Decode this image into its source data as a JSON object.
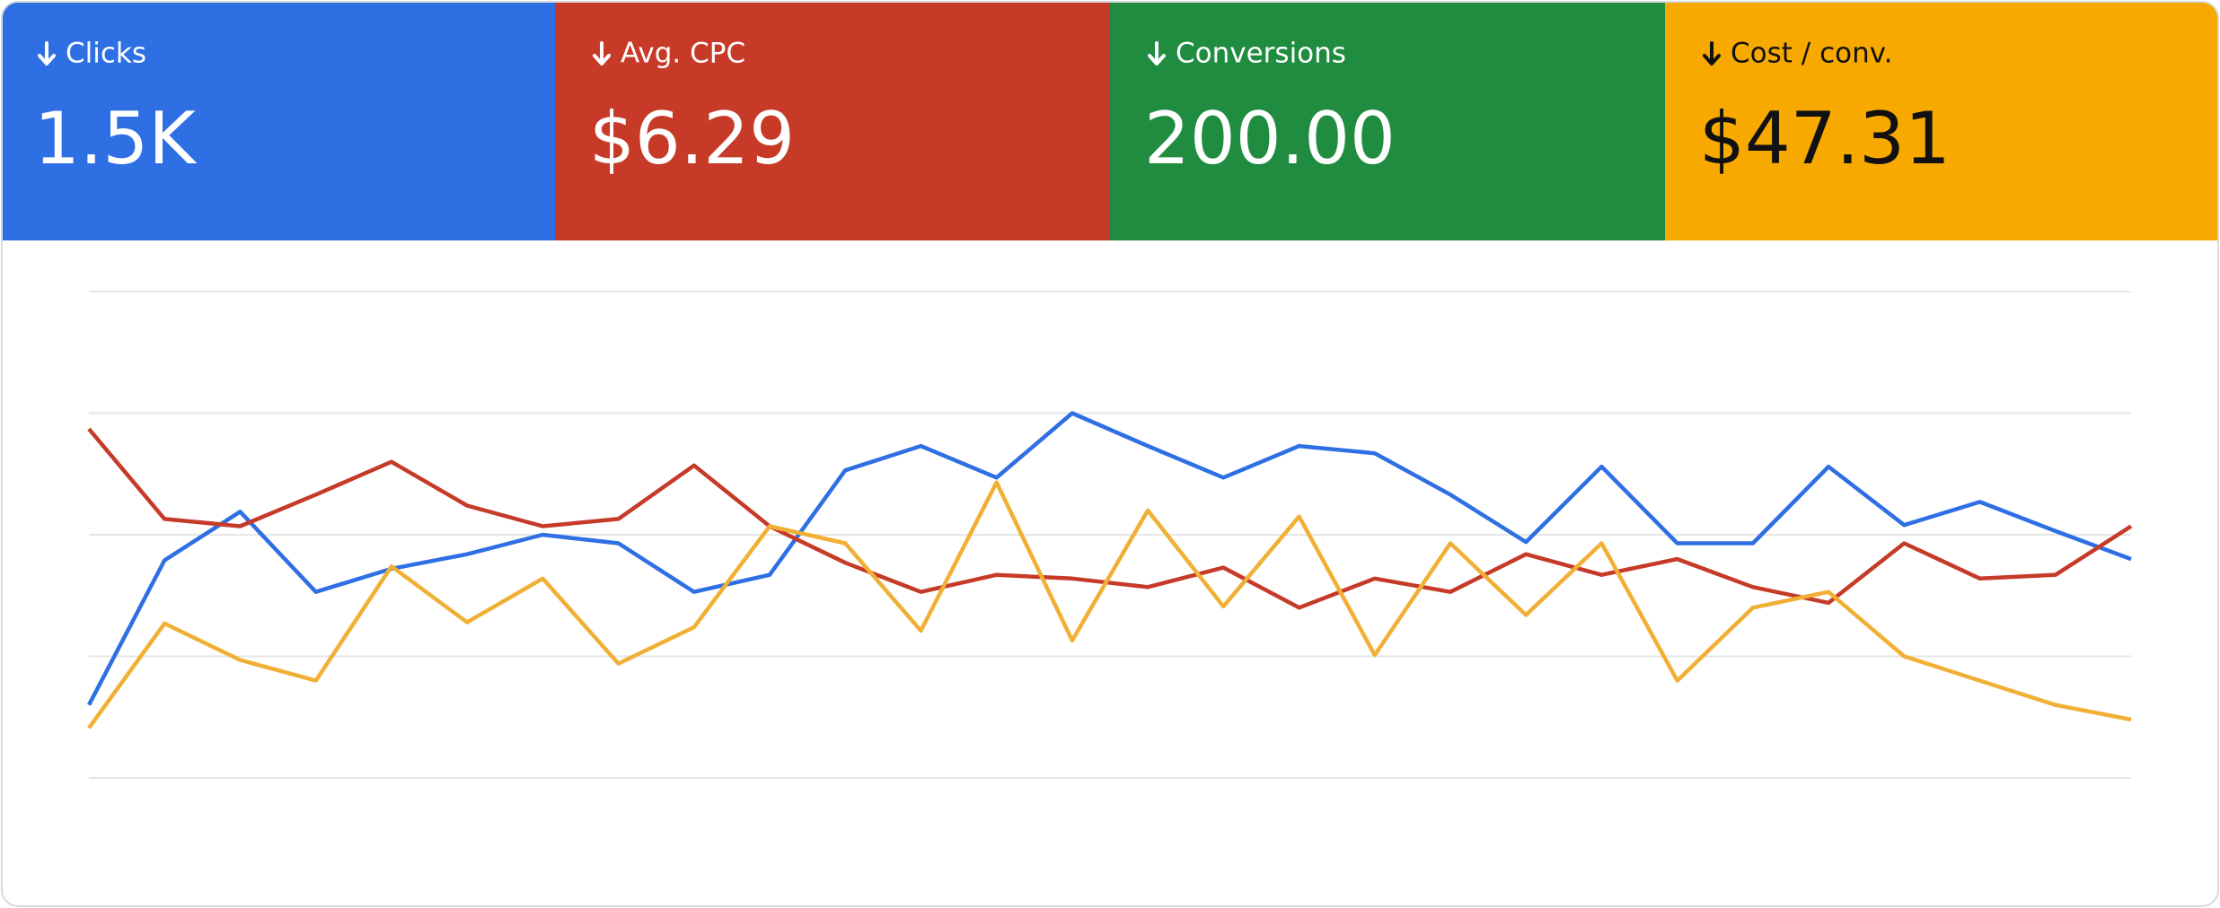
{
  "cards": [
    {
      "label": "Clicks",
      "value": "1.5K",
      "color": "#2f6fe4",
      "text_color": "#ffffff"
    },
    {
      "label": "Avg. CPC",
      "value": "$6.29",
      "color": "#c73a28",
      "text_color": "#ffffff"
    },
    {
      "label": "Conversions",
      "value": "200.00",
      "color": "#208c3f",
      "text_color": "#ffffff"
    },
    {
      "label": "Cost / conv.",
      "value": "$47.31",
      "color": "#f8a900",
      "text_color": "#111111"
    }
  ],
  "chart_data": {
    "type": "line",
    "ylim": [
      0,
      4
    ],
    "grid": true,
    "series": [
      {
        "color": "#2f6fe4",
        "values": [
          0.6,
          1.79,
          2.19,
          1.53,
          1.72,
          1.84,
          2.0,
          1.93,
          1.53,
          1.67,
          2.53,
          2.73,
          2.47,
          3.0,
          2.73,
          2.47,
          2.73,
          2.67,
          2.33,
          1.94,
          2.56,
          1.93,
          1.93,
          2.56,
          2.08,
          2.27,
          2.03,
          1.8
        ]
      },
      {
        "color": "#c63a28",
        "values": [
          2.87,
          2.13,
          2.07,
          2.33,
          2.6,
          2.24,
          2.07,
          2.13,
          2.57,
          2.07,
          1.77,
          1.53,
          1.67,
          1.64,
          1.57,
          1.73,
          1.4,
          1.64,
          1.53,
          1.84,
          1.67,
          1.8,
          1.57,
          1.44,
          1.93,
          1.64,
          1.67,
          2.07
        ]
      },
      {
        "color": "#f1b035",
        "values": [
          0.41,
          1.27,
          0.97,
          0.8,
          1.74,
          1.28,
          1.64,
          0.94,
          1.24,
          2.07,
          1.93,
          1.21,
          2.43,
          1.13,
          2.2,
          1.41,
          2.15,
          1.01,
          1.93,
          1.34,
          1.93,
          0.8,
          1.4,
          1.53,
          1.0,
          0.8,
          0.6,
          0.48
        ]
      }
    ]
  }
}
